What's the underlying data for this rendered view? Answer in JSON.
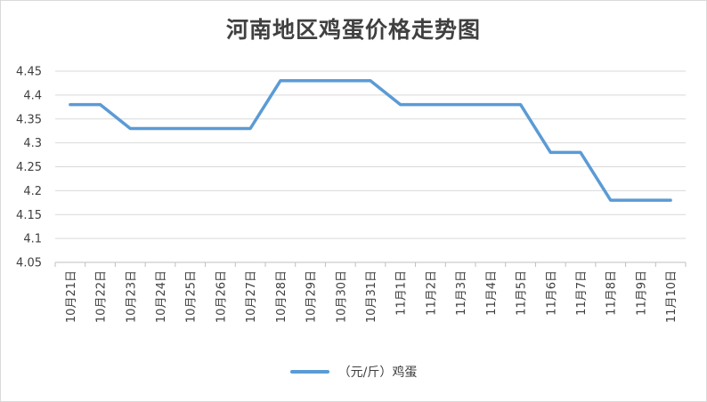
{
  "chart_data": {
    "type": "line",
    "title": "河南地区鸡蛋价格走势图",
    "categories": [
      "10月21日",
      "10月22日",
      "10月23日",
      "10月24日",
      "10月25日",
      "10月26日",
      "10月27日",
      "10月28日",
      "10月29日",
      "10月30日",
      "10月31日",
      "11月1日",
      "11月2日",
      "11月3日",
      "11月4日",
      "11月5日",
      "11月6日",
      "11月7日",
      "11月8日",
      "11月9日",
      "11月10日"
    ],
    "series": [
      {
        "name": "（元/斤）鸡蛋",
        "values": [
          4.38,
          4.38,
          4.33,
          4.33,
          4.33,
          4.33,
          4.33,
          4.43,
          4.43,
          4.43,
          4.43,
          4.38,
          4.38,
          4.38,
          4.38,
          4.38,
          4.28,
          4.28,
          4.18,
          4.18,
          4.18
        ],
        "color": "#5b9bd5"
      }
    ],
    "yticks": [
      "4.05",
      "4.1",
      "4.15",
      "4.2",
      "4.25",
      "4.3",
      "4.35",
      "4.4",
      "4.45"
    ],
    "ylim": [
      4.05,
      4.45
    ],
    "grid": true,
    "legend_position": "bottom",
    "gridline_color": "#d9d9d9",
    "text_color": "#404040"
  }
}
